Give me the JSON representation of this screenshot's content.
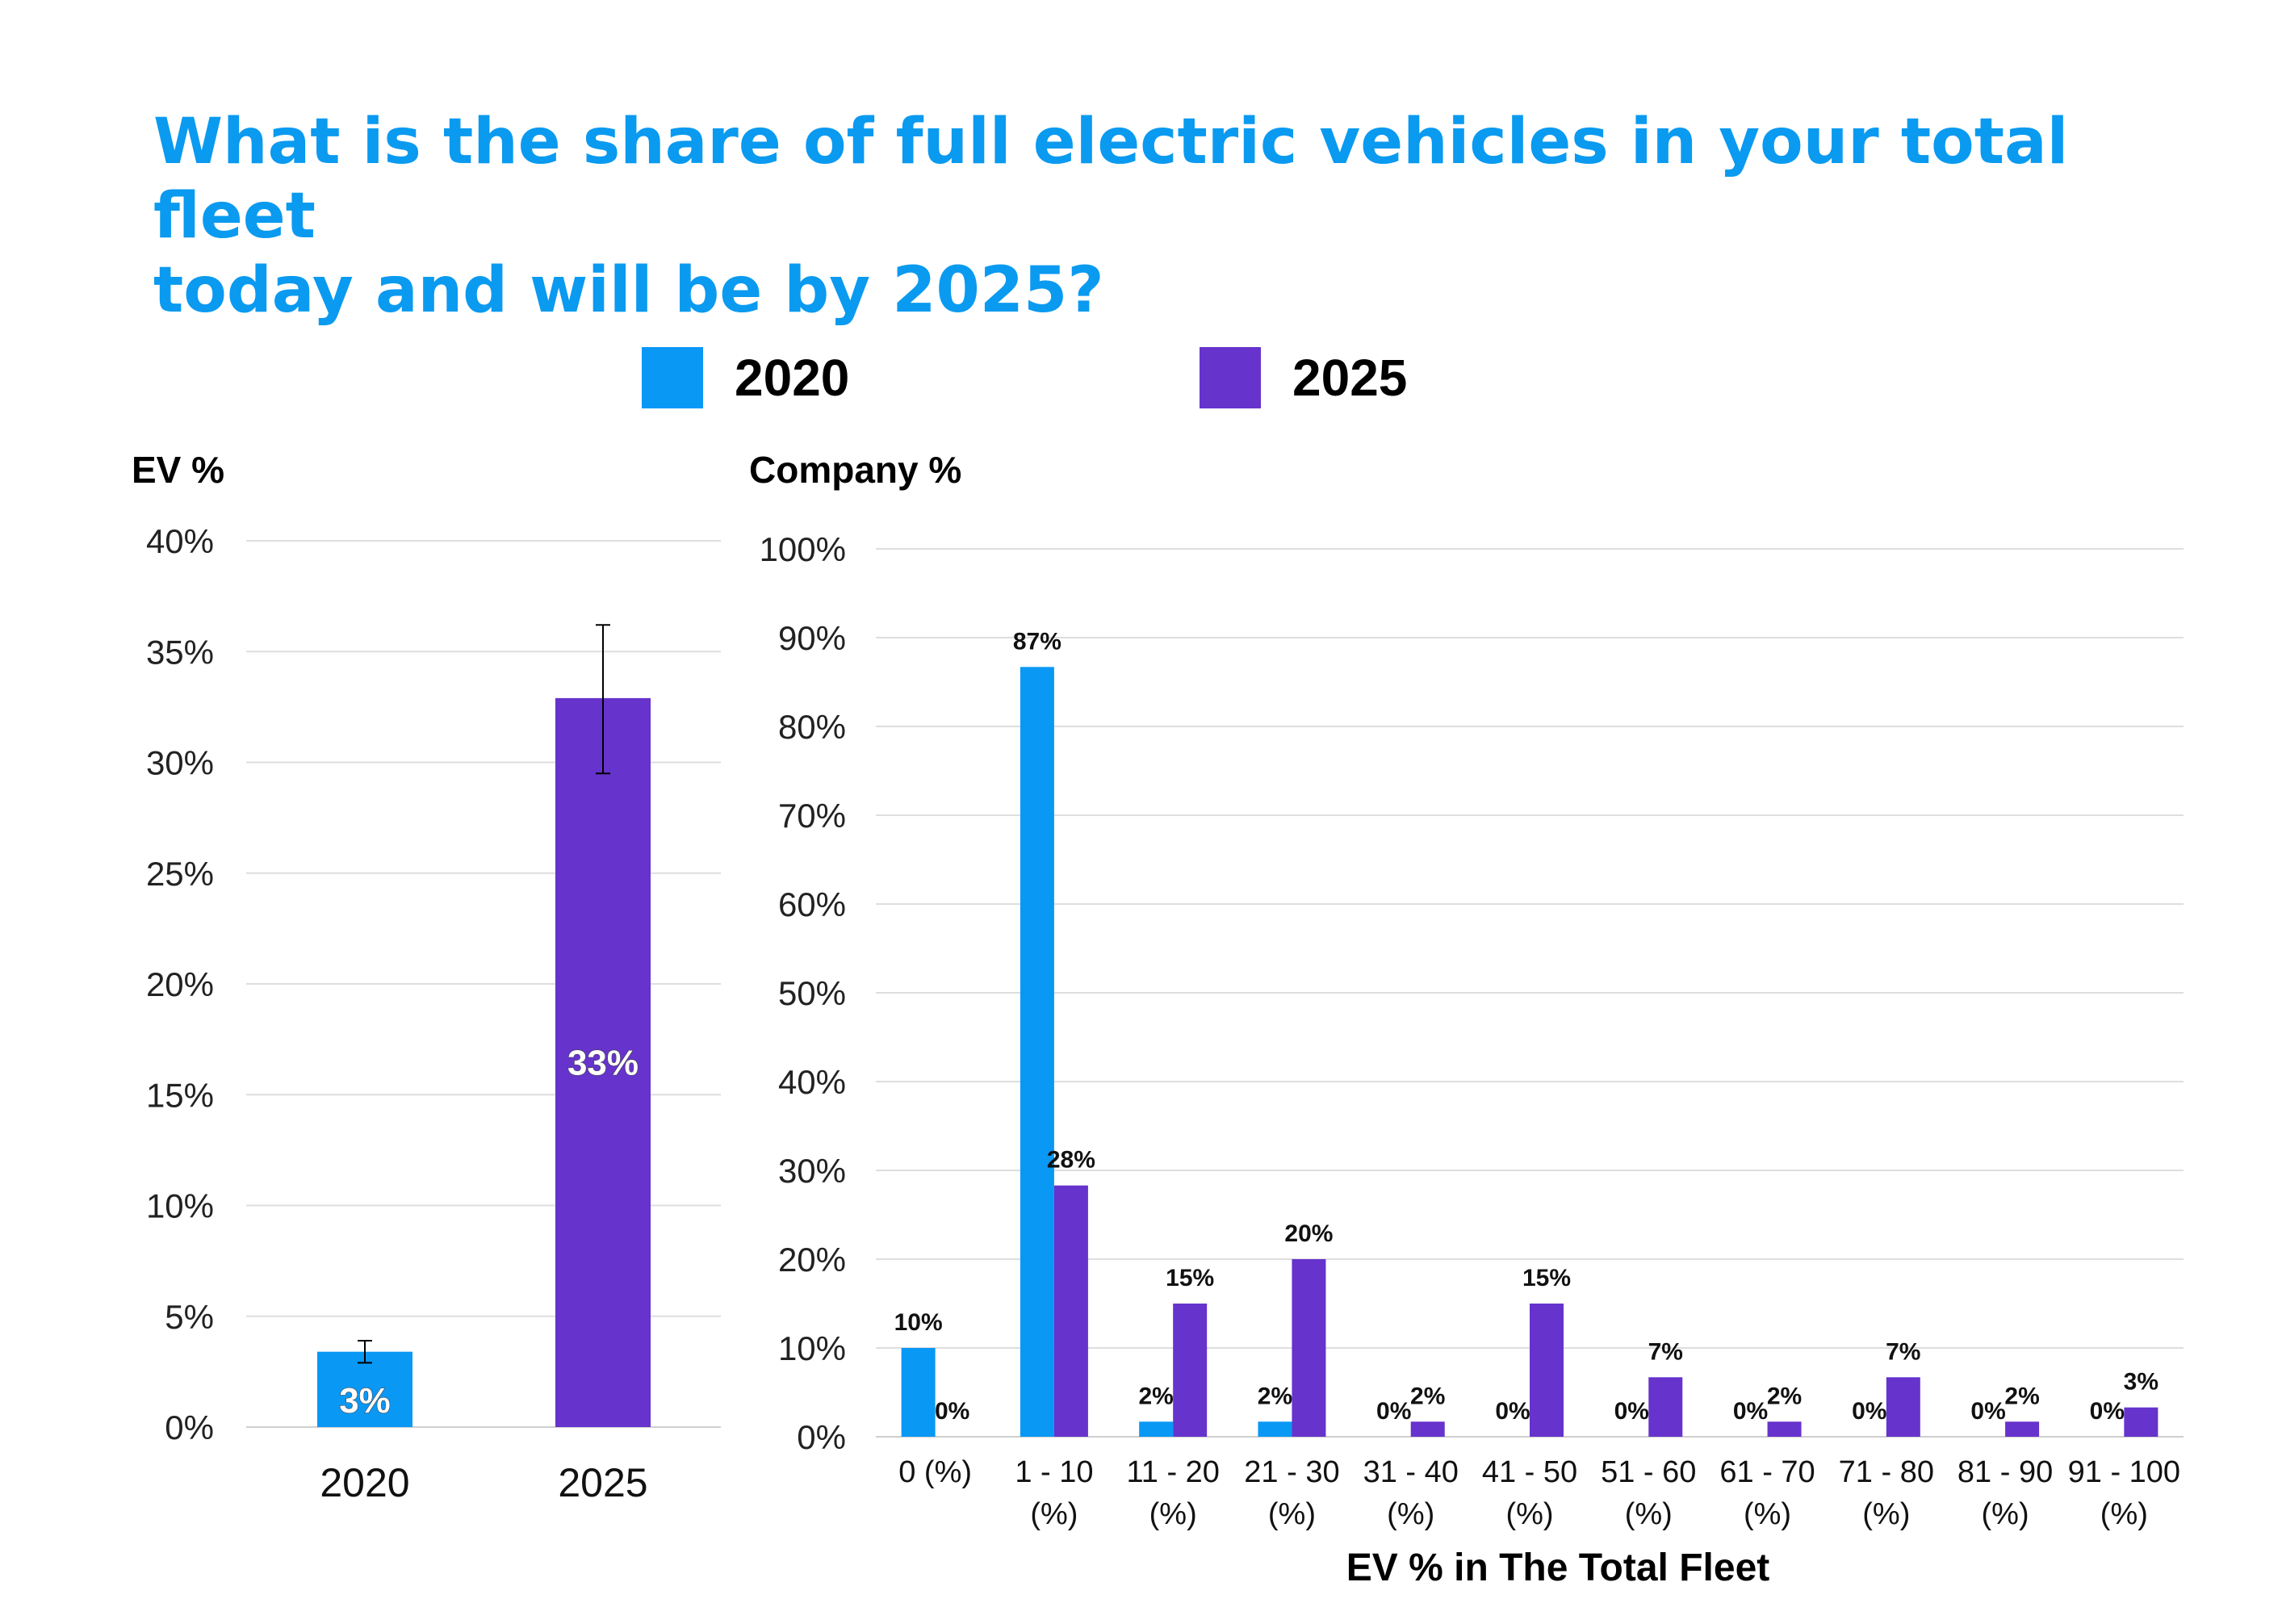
{
  "title": {
    "line1": "What is the share of full electric vehicles in your total fleet",
    "line2": "today and will be by 2025?"
  },
  "legend": [
    {
      "label": "2020",
      "color": "#0a98f5"
    },
    {
      "label": "2025",
      "color": "#6633cc"
    }
  ],
  "chart_data": [
    {
      "type": "bar",
      "ylabel": "EV %",
      "categories": [
        "2020",
        "2025"
      ],
      "values": [
        3.4,
        32.9
      ],
      "data_labels": [
        "3%",
        "33%"
      ],
      "error_bars": [
        [
          2.9,
          3.9
        ],
        [
          29.5,
          36.2
        ]
      ],
      "colors": [
        "#0a98f5",
        "#6633cc"
      ],
      "ylim": [
        0,
        40
      ],
      "yticks": [
        "0%",
        "5%",
        "10%",
        "15%",
        "20%",
        "25%",
        "30%",
        "35%",
        "40%"
      ],
      "grid": true
    },
    {
      "type": "bar",
      "ylabel": "Company %",
      "xlabel": "EV % in The Total Fleet",
      "categories": [
        [
          "0 (%)"
        ],
        [
          "1 - 10",
          "(%)"
        ],
        [
          "11 - 20",
          "(%)"
        ],
        [
          "21 - 30",
          "(%)"
        ],
        [
          "31 - 40",
          "(%)"
        ],
        [
          "41 - 50",
          "(%)"
        ],
        [
          "51 - 60",
          "(%)"
        ],
        [
          "61 - 70",
          "(%)"
        ],
        [
          "71 - 80",
          "(%)"
        ],
        [
          "81 - 90",
          "(%)"
        ],
        [
          "91 - 100",
          "(%)"
        ]
      ],
      "series": [
        {
          "name": "2020",
          "color": "#0a98f5",
          "values": [
            10,
            86.7,
            1.7,
            1.7,
            0,
            0,
            0,
            0,
            0,
            0,
            0
          ],
          "labels": [
            "10%",
            "87%",
            "2%",
            "2%",
            "0%",
            "0%",
            "0%",
            "0%",
            "0%",
            "0%",
            "0%"
          ]
        },
        {
          "name": "2025",
          "color": "#6633cc",
          "values": [
            0,
            28.3,
            15,
            20,
            1.7,
            15,
            6.7,
            1.7,
            6.7,
            1.7,
            3.3
          ],
          "labels": [
            "0%",
            "28%",
            "15%",
            "20%",
            "2%",
            "15%",
            "7%",
            "2%",
            "7%",
            "2%",
            "3%"
          ]
        }
      ],
      "ylim": [
        0,
        100
      ],
      "yticks": [
        "0%",
        "10%",
        "20%",
        "30%",
        "40%",
        "50%",
        "60%",
        "70%",
        "80%",
        "90%",
        "100%"
      ],
      "grid": true
    }
  ]
}
